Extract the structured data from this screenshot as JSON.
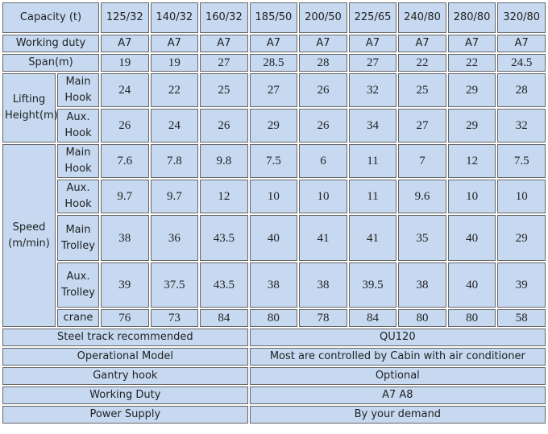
{
  "table": {
    "header": {
      "label": "Capacity (t)",
      "columns": [
        "125/32",
        "140/32",
        "160/32",
        "185/50",
        "200/50",
        "225/65",
        "240/80",
        "280/80",
        "320/80"
      ]
    },
    "rows": [
      {
        "label": "Working duty",
        "values": [
          "A7",
          "A7",
          "A7",
          "A7",
          "A7",
          "A7",
          "A7",
          "A7",
          "A7"
        ]
      },
      {
        "label": "Span(m)",
        "values": [
          19,
          19,
          27,
          28.5,
          28,
          27,
          22,
          22,
          24.5
        ]
      }
    ],
    "groups": [
      {
        "label": "Lifting Height(m)",
        "rows": [
          {
            "label": "Main Hook",
            "values": [
              24,
              22,
              25,
              27,
              26,
              32,
              25,
              29,
              28
            ]
          },
          {
            "label": "Aux. Hook",
            "values": [
              26,
              24,
              26,
              29,
              26,
              34,
              27,
              29,
              32
            ]
          }
        ]
      },
      {
        "label": "Speed (m/min)",
        "rows": [
          {
            "label": "Main Hook",
            "values": [
              7.6,
              7.8,
              9.8,
              7.5,
              6,
              11,
              7,
              12,
              7.5
            ]
          },
          {
            "label": "Aux. Hook",
            "values": [
              9.7,
              9.7,
              12,
              10,
              10,
              11,
              9.6,
              10,
              10
            ]
          },
          {
            "label": "Main Trolley",
            "values": [
              38,
              36,
              43.5,
              40,
              41,
              41,
              35,
              40,
              29
            ]
          },
          {
            "label": "Aux. Trolley",
            "values": [
              39,
              37.5,
              43.5,
              38,
              38,
              39.5,
              38,
              40,
              39
            ]
          },
          {
            "label": "crane",
            "values": [
              76,
              73,
              84,
              80,
              78,
              84,
              80,
              80,
              58
            ]
          }
        ]
      }
    ],
    "specs": [
      {
        "label": "Steel track recommended",
        "value": "QU120"
      },
      {
        "label": "Operational Model",
        "value": "Most are controlled by Cabin with air conditioner"
      },
      {
        "label": "Gantry hook",
        "value": "Optional"
      },
      {
        "label": "Working Duty",
        "value": "A7 A8"
      },
      {
        "label": "Power Supply",
        "value": "By your demand"
      }
    ]
  }
}
